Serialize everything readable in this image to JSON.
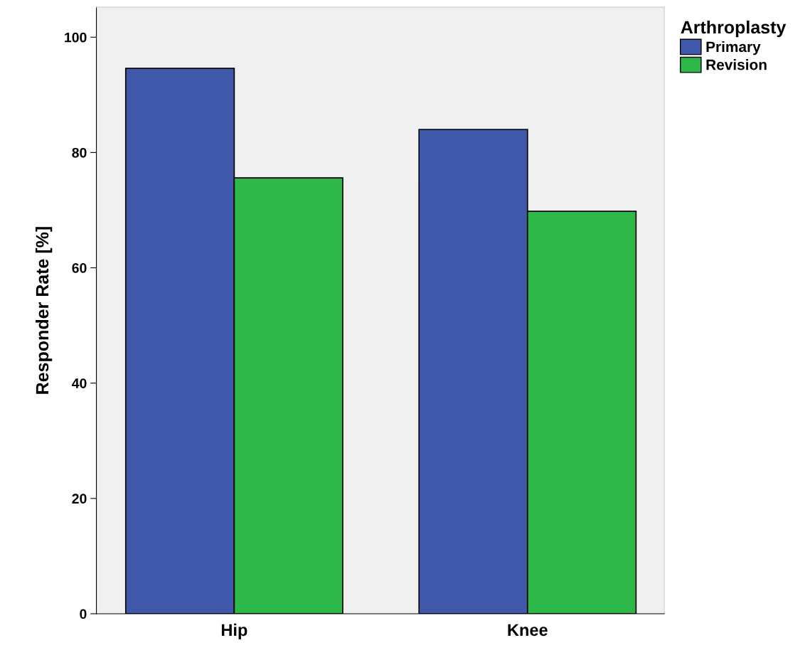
{
  "chart_data": {
    "type": "bar",
    "ylabel": "Responder Rate [%]",
    "legend_title": "Arthroplasty",
    "categories": [
      "Hip",
      "Knee"
    ],
    "series": [
      {
        "name": "Primary",
        "color": "#3f58a9",
        "values": [
          94.6,
          84.0
        ]
      },
      {
        "name": "Revision",
        "color": "#2fb84a",
        "values": [
          75.6,
          69.8
        ]
      }
    ],
    "ylim": [
      0,
      105.2
    ],
    "yticks": [
      0,
      20,
      40,
      60,
      80,
      100
    ],
    "grid": false,
    "legend": "top right"
  }
}
